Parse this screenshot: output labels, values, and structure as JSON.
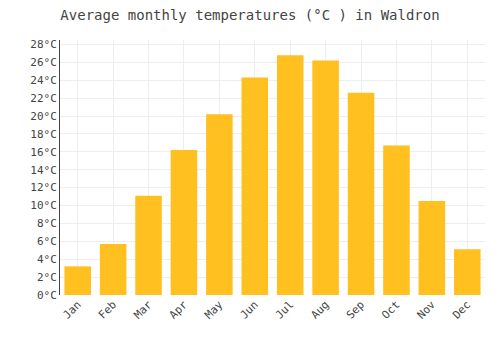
{
  "chart_data": {
    "type": "bar",
    "title": "Average monthly temperatures (°C ) in Waldron",
    "categories": [
      "Jan",
      "Feb",
      "Mar",
      "Apr",
      "May",
      "Jun",
      "Jul",
      "Aug",
      "Sep",
      "Oct",
      "Nov",
      "Dec"
    ],
    "values": [
      3.2,
      5.7,
      11.1,
      16.2,
      20.2,
      24.3,
      26.8,
      26.2,
      22.6,
      16.7,
      10.5,
      5.1
    ],
    "color": "#FFC020",
    "ylim": [
      0,
      28.5
    ],
    "yticks": [
      {
        "value": 0,
        "label": "0°C"
      },
      {
        "value": 2,
        "label": "2°C"
      },
      {
        "value": 4,
        "label": "4°C"
      },
      {
        "value": 6,
        "label": "6°C"
      },
      {
        "value": 8,
        "label": "8°C"
      },
      {
        "value": 10,
        "label": "10°C"
      },
      {
        "value": 12,
        "label": "12°C"
      },
      {
        "value": 14,
        "label": "14°C"
      },
      {
        "value": 16,
        "label": "16°C"
      },
      {
        "value": 18,
        "label": "18°C"
      },
      {
        "value": 20,
        "label": "20°C"
      },
      {
        "value": 22,
        "label": "22°C"
      },
      {
        "value": 24,
        "label": "24°C"
      },
      {
        "value": 26,
        "label": "26°C"
      },
      {
        "value": 28,
        "label": "28°C"
      }
    ],
    "grid": true
  }
}
